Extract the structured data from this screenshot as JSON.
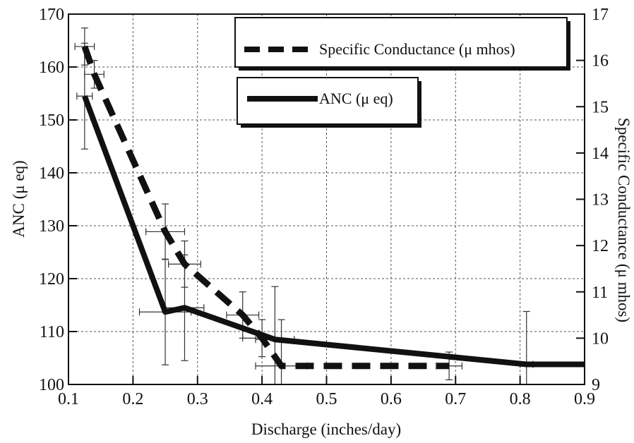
{
  "chart_data": {
    "type": "line",
    "title": "",
    "xlabel": "Discharge (inches/day)",
    "ylabel": "ANC (μ eq)",
    "y2label": "Specific Conductance (μ mhos)",
    "xlim": [
      0.1,
      0.9
    ],
    "ylim": [
      100,
      170
    ],
    "y2lim": [
      9,
      17
    ],
    "xticks": [
      "0.1",
      "0.2",
      "0.3",
      "0.4",
      "0.5",
      "0.6",
      "0.7",
      "0.8",
      "0.9"
    ],
    "yticks": [
      "100",
      "110",
      "120",
      "130",
      "140",
      "150",
      "160",
      "170"
    ],
    "y2ticks": [
      "9",
      "10",
      "11",
      "12",
      "13",
      "14",
      "15",
      "16",
      "17"
    ],
    "grid": true,
    "legend_position": "top-right",
    "series": [
      {
        "name": "Specific Conductance (μ mhos)",
        "axis": "right",
        "style": "dashed",
        "x": [
          0.125,
          0.14,
          0.25,
          0.28,
          0.37,
          0.4,
          0.43,
          0.69
        ],
        "y": [
          16.3,
          15.7,
          12.3,
          11.6,
          10.5,
          10.0,
          9.4,
          9.4
        ],
        "xerr": [
          0.015,
          0.015,
          0.03,
          0.025,
          0.025,
          0.03,
          0.04,
          0.02
        ],
        "yerr": [
          0.4,
          0.3,
          0.6,
          0.5,
          0.5,
          0.4,
          1.0,
          0.3
        ]
      },
      {
        "name": "ANC (μ eq)",
        "axis": "left",
        "style": "solid",
        "x": [
          0.125,
          0.25,
          0.28,
          0.42,
          0.81
        ],
        "y": [
          154.5,
          113.7,
          114.5,
          108.5,
          103.8
        ],
        "xerr": [
          0.012,
          0.04,
          0.03,
          0.03,
          0.01
        ],
        "yerr": [
          10,
          10,
          10,
          10,
          10
        ],
        "extend_to": 0.9
      }
    ]
  }
}
